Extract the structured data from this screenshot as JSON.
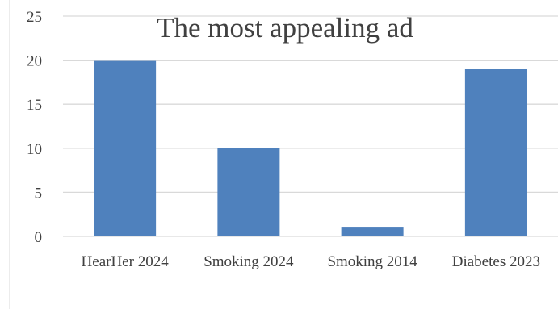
{
  "chart_data": {
    "type": "bar",
    "title": "The most appealing ad",
    "categories": [
      "HearHer 2024",
      "Smoking 2024",
      "Smoking 2014",
      "Diabetes 2023"
    ],
    "values": [
      20,
      10,
      1,
      19
    ],
    "xlabel": "",
    "ylabel": "",
    "ylim": [
      0,
      25
    ],
    "yticks": [
      0,
      5,
      10,
      15,
      20,
      25
    ],
    "grid": true,
    "legend": "none",
    "bar_color": "#4f81bd"
  }
}
